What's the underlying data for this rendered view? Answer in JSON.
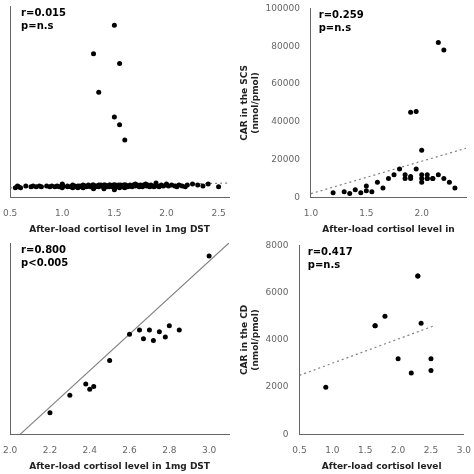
{
  "chart_data": [
    {
      "type": "scatter",
      "xlabel": "After-load cortisol level in 1mg DST",
      "annotations": [
        "r=0.015",
        "p=n.s"
      ],
      "xlim": [
        0.5,
        2.6
      ],
      "ylim": [
        0,
        1000
      ],
      "xticks": [
        0.5,
        {
          "value": 1.0,
          "label": "1.0"
        },
        1.5,
        {
          "value": 2.0,
          "label": "2.0"
        },
        2.5
      ],
      "yticks": [],
      "tick_labels": "x",
      "grid": false,
      "series": [
        {
          "type": "scatter",
          "color": "black",
          "marker": "circle",
          "x": [
            0.55,
            0.57,
            0.58,
            0.6,
            0.65,
            0.7,
            0.72,
            0.75,
            0.78,
            0.8,
            0.85,
            0.88,
            0.9,
            0.93,
            0.95,
            0.97,
            1.0,
            1.0,
            1.0,
            1.0,
            1.0,
            1.0,
            1.0,
            1.0,
            1.05,
            1.05,
            1.08,
            1.1,
            1.1,
            1.1,
            1.1,
            1.12,
            1.13,
            1.15,
            1.15,
            1.15,
            1.17,
            1.18,
            1.2,
            1.2,
            1.2,
            1.2,
            1.22,
            1.23,
            1.25,
            1.25,
            1.27,
            1.28,
            1.29,
            1.3,
            1.3,
            1.3,
            1.3,
            1.3,
            1.31,
            1.32,
            1.33,
            1.35,
            1.35,
            1.35,
            1.37,
            1.38,
            1.4,
            1.4,
            1.4,
            1.4,
            1.4,
            1.41,
            1.42,
            1.43,
            1.44,
            1.45,
            1.45,
            1.45,
            1.46,
            1.47,
            1.48,
            1.49,
            1.5,
            1.5,
            1.5,
            1.5,
            1.5,
            1.5,
            1.51,
            1.52,
            1.53,
            1.54,
            1.55,
            1.55,
            1.55,
            1.56,
            1.57,
            1.58,
            1.59,
            1.6,
            1.6,
            1.6,
            1.6,
            1.61,
            1.62,
            1.63,
            1.65,
            1.65,
            1.67,
            1.68,
            1.7,
            1.7,
            1.7,
            1.72,
            1.73,
            1.74,
            1.75,
            1.75,
            1.77,
            1.78,
            1.8,
            1.8,
            1.81,
            1.82,
            1.83,
            1.84,
            1.85,
            1.87,
            1.88,
            1.9,
            1.9,
            1.91,
            1.93,
            1.95,
            1.97,
            2.0,
            2.0,
            2.02,
            2.05,
            2.08,
            2.1,
            2.12,
            2.15,
            2.18,
            2.2,
            2.25,
            2.3,
            2.35,
            2.4,
            2.5,
            1.35,
            1.5,
            1.55,
            1.6,
            1.3,
            1.5,
            1.55
          ],
          "values": [
            50,
            60,
            55,
            50,
            60,
            55,
            60,
            55,
            60,
            55,
            60,
            55,
            60,
            55,
            60,
            55,
            50,
            55,
            60,
            65,
            70,
            55,
            60,
            65,
            55,
            60,
            55,
            65,
            60,
            55,
            50,
            60,
            55,
            60,
            55,
            50,
            60,
            55,
            65,
            60,
            55,
            50,
            60,
            55,
            65,
            60,
            55,
            60,
            65,
            65,
            60,
            55,
            50,
            45,
            60,
            55,
            60,
            65,
            60,
            55,
            65,
            60,
            65,
            60,
            55,
            50,
            45,
            65,
            60,
            55,
            60,
            65,
            60,
            55,
            65,
            60,
            55,
            65,
            65,
            60,
            55,
            50,
            45,
            40,
            65,
            60,
            55,
            65,
            60,
            55,
            50,
            65,
            60,
            55,
            65,
            65,
            60,
            55,
            50,
            65,
            60,
            55,
            65,
            60,
            55,
            65,
            70,
            65,
            60,
            65,
            60,
            55,
            65,
            60,
            55,
            65,
            70,
            65,
            60,
            65,
            60,
            55,
            65,
            60,
            55,
            75,
            65,
            60,
            55,
            65,
            60,
            70,
            65,
            60,
            65,
            60,
            55,
            65,
            60,
            55,
            65,
            70,
            65,
            60,
            70,
            55,
            550,
            420,
            380,
            300,
            750,
            900,
            700
          ]
        },
        {
          "type": "line",
          "color": "gray",
          "line_style": "dotted",
          "x": [
            0.5,
            2.6
          ],
          "values": [
            50,
            75
          ]
        }
      ]
    },
    {
      "type": "scatter",
      "xlabel": "After-load cortisol level in",
      "ylabel": "CAR in the SCS\n(nmol/pmol)",
      "annotations": [
        "r=0.259",
        "p=n.s"
      ],
      "xlim": [
        1.0,
        2.4
      ],
      "ylim": [
        0,
        100000
      ],
      "xticks": [
        {
          "value": 1.0,
          "label": "1.0"
        },
        1.5,
        {
          "value": 2.0,
          "label": "2.0"
        }
      ],
      "yticks": [
        0,
        20000,
        40000,
        60000,
        80000,
        100000
      ],
      "grid": false,
      "series": [
        {
          "type": "scatter",
          "color": "black",
          "marker": "circle",
          "x": [
            1.2,
            1.3,
            1.35,
            1.4,
            1.45,
            1.5,
            1.5,
            1.55,
            1.6,
            1.65,
            1.7,
            1.75,
            1.8,
            1.85,
            1.85,
            1.9,
            1.9,
            1.95,
            2.0,
            2.0,
            2.0,
            2.05,
            2.05,
            2.1,
            2.15,
            2.2,
            2.25,
            2.3,
            1.9,
            1.95,
            2.0,
            2.05,
            2.1,
            2.15,
            2.2
          ],
          "values": [
            2500,
            3000,
            2000,
            4000,
            2500,
            3500,
            6000,
            3000,
            8000,
            5000,
            10000,
            12000,
            15000,
            12000,
            10000,
            10000,
            11000,
            15000,
            10000,
            12000,
            8000,
            10000,
            12000,
            10000,
            12000,
            10000,
            8000,
            5000,
            45000,
            45500,
            25000,
            10000,
            10000,
            82000,
            78000
          ]
        },
        {
          "type": "line",
          "color": "gray",
          "line_style": "dotted",
          "x": [
            1.0,
            2.4
          ],
          "values": [
            2000,
            26000
          ]
        }
      ]
    },
    {
      "type": "scatter",
      "xlabel": "After-load cortisol level in 1mg DST",
      "annotations": [
        "r=0.800",
        "p<0.005"
      ],
      "xlim": [
        2.0,
        3.1
      ],
      "ylim": [
        -100,
        2100
      ],
      "xticks": [
        {
          "value": 2.0,
          "label": "2.0"
        },
        2.2,
        2.4,
        2.6,
        2.8,
        {
          "value": 3.0,
          "label": "3.0"
        }
      ],
      "yticks": [],
      "tick_labels": "x",
      "grid": false,
      "series": [
        {
          "type": "scatter",
          "color": "black",
          "marker": "circle",
          "x": [
            2.2,
            2.3,
            2.38,
            2.4,
            2.42,
            2.5,
            2.6,
            2.65,
            2.67,
            2.7,
            2.72,
            2.75,
            2.78,
            2.8,
            2.85,
            3.0
          ],
          "values": [
            150,
            350,
            480,
            420,
            450,
            750,
            1050,
            1100,
            1000,
            1100,
            980,
            1080,
            1020,
            1150,
            1100,
            1950
          ]
        },
        {
          "type": "line",
          "color": "gray",
          "line_style": "solid",
          "x": [
            2.05,
            3.1
          ],
          "values": [
            -100,
            2100
          ]
        }
      ]
    },
    {
      "type": "scatter",
      "xlabel": "After-load cortisol level",
      "ylabel": "CAR in the CD\n(nmol/pmol)",
      "annotations": [
        "r=0.417",
        "p=n.s"
      ],
      "xlim": [
        0.5,
        3.0
      ],
      "ylim": [
        0,
        8000
      ],
      "xticks": [
        0.5,
        {
          "value": 1.0,
          "label": "1.0"
        },
        1.5,
        {
          "value": 2.0,
          "label": "2.0"
        },
        2.5,
        {
          "value": 3.0,
          "label": "3.0"
        }
      ],
      "yticks": [
        0,
        2000,
        4000,
        6000,
        8000
      ],
      "grid": false,
      "series": [
        {
          "type": "scatter",
          "color": "black",
          "marker": "circle",
          "x": [
            0.9,
            1.65,
            1.65,
            1.8,
            2.0,
            2.2,
            2.3,
            2.3,
            2.35,
            2.5,
            2.5
          ],
          "values": [
            2000,
            4600,
            4600,
            5000,
            3200,
            2600,
            6700,
            6700,
            4700,
            3200,
            2700
          ]
        },
        {
          "type": "line",
          "color": "gray",
          "line_style": "dotted",
          "x": [
            0.5,
            2.55
          ],
          "values": [
            2500,
            4600
          ]
        }
      ]
    }
  ]
}
